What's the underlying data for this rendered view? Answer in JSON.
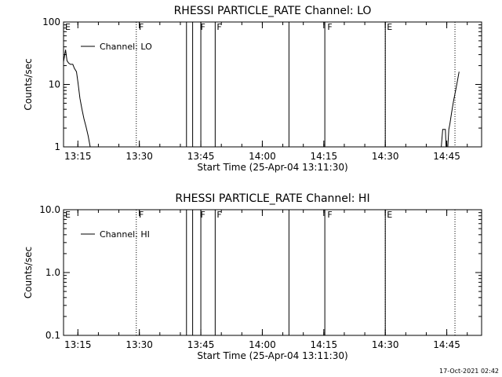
{
  "footer_timestamp": "17-Oct-2021 02:42",
  "chart_data": [
    {
      "type": "line",
      "title": "RHESSI PARTICLE_RATE Channel: LO",
      "xlabel": "Start Time (25-Apr-04 13:11:30)",
      "ylabel": "Counts/sec",
      "y_scale": "log",
      "xlim": [
        "13:11:30",
        "14:53:30"
      ],
      "ylim": [
        1,
        100
      ],
      "x_tick_labels": [
        "13:15",
        "13:30",
        "13:45",
        "14:00",
        "14:15",
        "14:30",
        "14:45"
      ],
      "y_tick_labels": [
        "1",
        "10",
        "100"
      ],
      "legend": {
        "label": "Channel: LO",
        "placement": "top-left"
      },
      "annotation_flags": [
        {
          "time": "13:11:30",
          "label": "E"
        },
        {
          "time": "13:29:30",
          "label": "F"
        },
        {
          "time": "13:44:30",
          "label": "F"
        },
        {
          "time": "13:48:30",
          "label": "F"
        },
        {
          "time": "14:15:30",
          "label": "F"
        },
        {
          "time": "14:30:00",
          "label": "E"
        }
      ],
      "dotted_markers": [
        "13:29:15",
        "14:30:00",
        "14:47:00"
      ],
      "solid_markers": [
        "13:41:30",
        "13:43:00",
        "13:45:00",
        "13:48:30",
        "14:06:30",
        "14:15:15",
        "14:30:00"
      ],
      "series": [
        {
          "segments": [
            [
              [
                "13:11:30",
                23
              ],
              [
                "13:12:00",
                36
              ],
              [
                "13:12:20",
                24
              ],
              [
                "13:12:45",
                22
              ],
              [
                "13:13:10",
                21
              ],
              [
                "13:13:45",
                21
              ],
              [
                "13:14:10",
                18
              ],
              [
                "13:14:40",
                16
              ],
              [
                "13:15:00",
                11
              ],
              [
                "13:15:30",
                6
              ],
              [
                "13:16:00",
                4
              ],
              [
                "13:16:30",
                2.8
              ],
              [
                "13:17:00",
                2.1
              ],
              [
                "13:17:30",
                1.5
              ],
              [
                "13:18:00",
                1.0
              ]
            ],
            [
              [
                "14:43:40",
                1.0
              ],
              [
                "14:44:00",
                1.9
              ],
              [
                "14:44:40",
                1.9
              ],
              [
                "14:44:50",
                1.0
              ],
              [
                "14:45:15",
                1.0
              ],
              [
                "14:45:30",
                1.9
              ],
              [
                "14:45:45",
                2.3
              ],
              [
                "14:46:10",
                3.5
              ],
              [
                "14:46:40",
                5.5
              ],
              [
                "14:47:10",
                8
              ],
              [
                "14:47:40",
                12
              ],
              [
                "14:48:00",
                16
              ]
            ]
          ]
        }
      ]
    },
    {
      "type": "line",
      "title": "RHESSI PARTICLE_RATE Channel: HI",
      "xlabel": "Start Time (25-Apr-04 13:11:30)",
      "ylabel": "Counts/sec",
      "y_scale": "log",
      "xlim": [
        "13:11:30",
        "14:53:30"
      ],
      "ylim": [
        0.1,
        10
      ],
      "x_tick_labels": [
        "13:15",
        "13:30",
        "13:45",
        "14:00",
        "14:15",
        "14:30",
        "14:45"
      ],
      "y_tick_labels": [
        "0.1",
        "1.0",
        "10.0"
      ],
      "legend": {
        "label": "Channel: HI",
        "placement": "top-left"
      },
      "annotation_flags": [
        {
          "time": "13:11:30",
          "label": "E"
        },
        {
          "time": "13:29:30",
          "label": "F"
        },
        {
          "time": "13:44:30",
          "label": "F"
        },
        {
          "time": "13:48:30",
          "label": "F"
        },
        {
          "time": "14:15:30",
          "label": "F"
        },
        {
          "time": "14:30:00",
          "label": "E"
        }
      ],
      "dotted_markers": [
        "13:29:15",
        "14:30:00",
        "14:47:00"
      ],
      "solid_markers": [
        "13:41:30",
        "13:43:00",
        "13:45:00",
        "13:48:30",
        "14:06:30",
        "14:15:15",
        "14:30:00"
      ],
      "series": []
    }
  ]
}
